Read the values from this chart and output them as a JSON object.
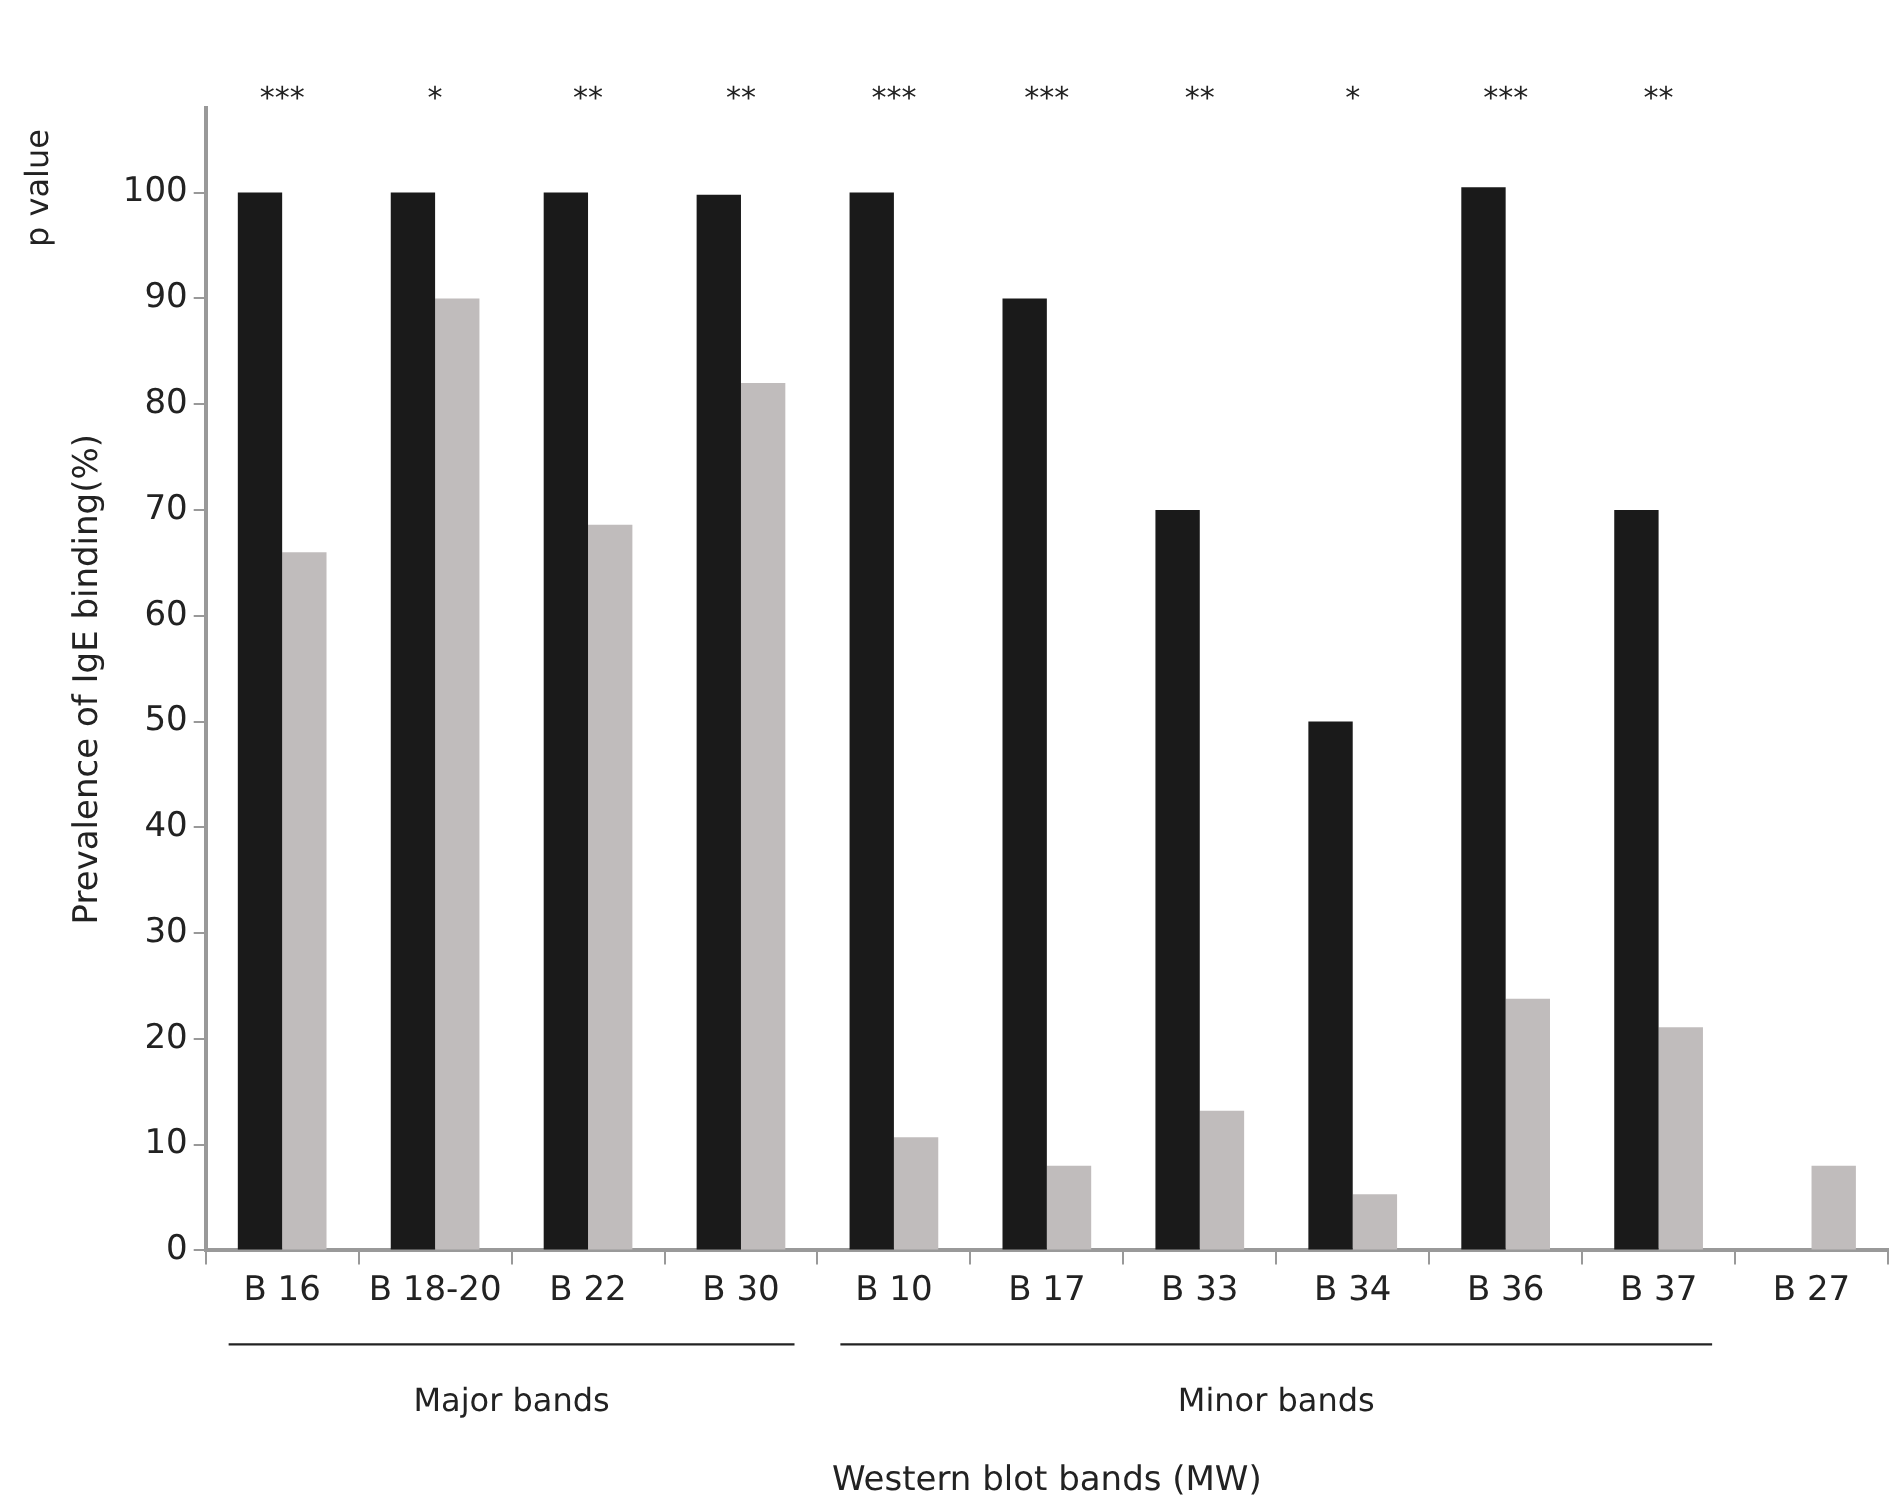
{
  "chart_data": {
    "type": "bar",
    "xlabel": "Western blot bands (MW)",
    "ylabel": "Prevalence of IgE binding(%)",
    "categories": [
      "B 16",
      "B 18-20",
      "B 22",
      "B 30",
      "B 10",
      "B 17",
      "B 33",
      "B 34",
      "B 36",
      "B 37",
      "B 27"
    ],
    "series": [
      {
        "color": "#1a1a1a",
        "values": [
          100,
          100,
          100,
          99.8,
          100,
          90,
          70,
          50,
          100.5,
          70,
          null
        ]
      },
      {
        "color": "#c0bcbc",
        "values": [
          66,
          90,
          68.6,
          82,
          10.7,
          8,
          13.2,
          5.3,
          23.8,
          21.1,
          8
        ]
      }
    ],
    "ylim": [
      0,
      108
    ],
    "yticks": [
      0,
      10,
      20,
      30,
      40,
      50,
      60,
      70,
      80,
      90,
      100
    ],
    "grid": false,
    "legend": false,
    "annotations": [
      "p value",
      "Major bands",
      "Minor bands",
      "*** * ** ** *** *** ** * *** **"
    ]
  }
}
